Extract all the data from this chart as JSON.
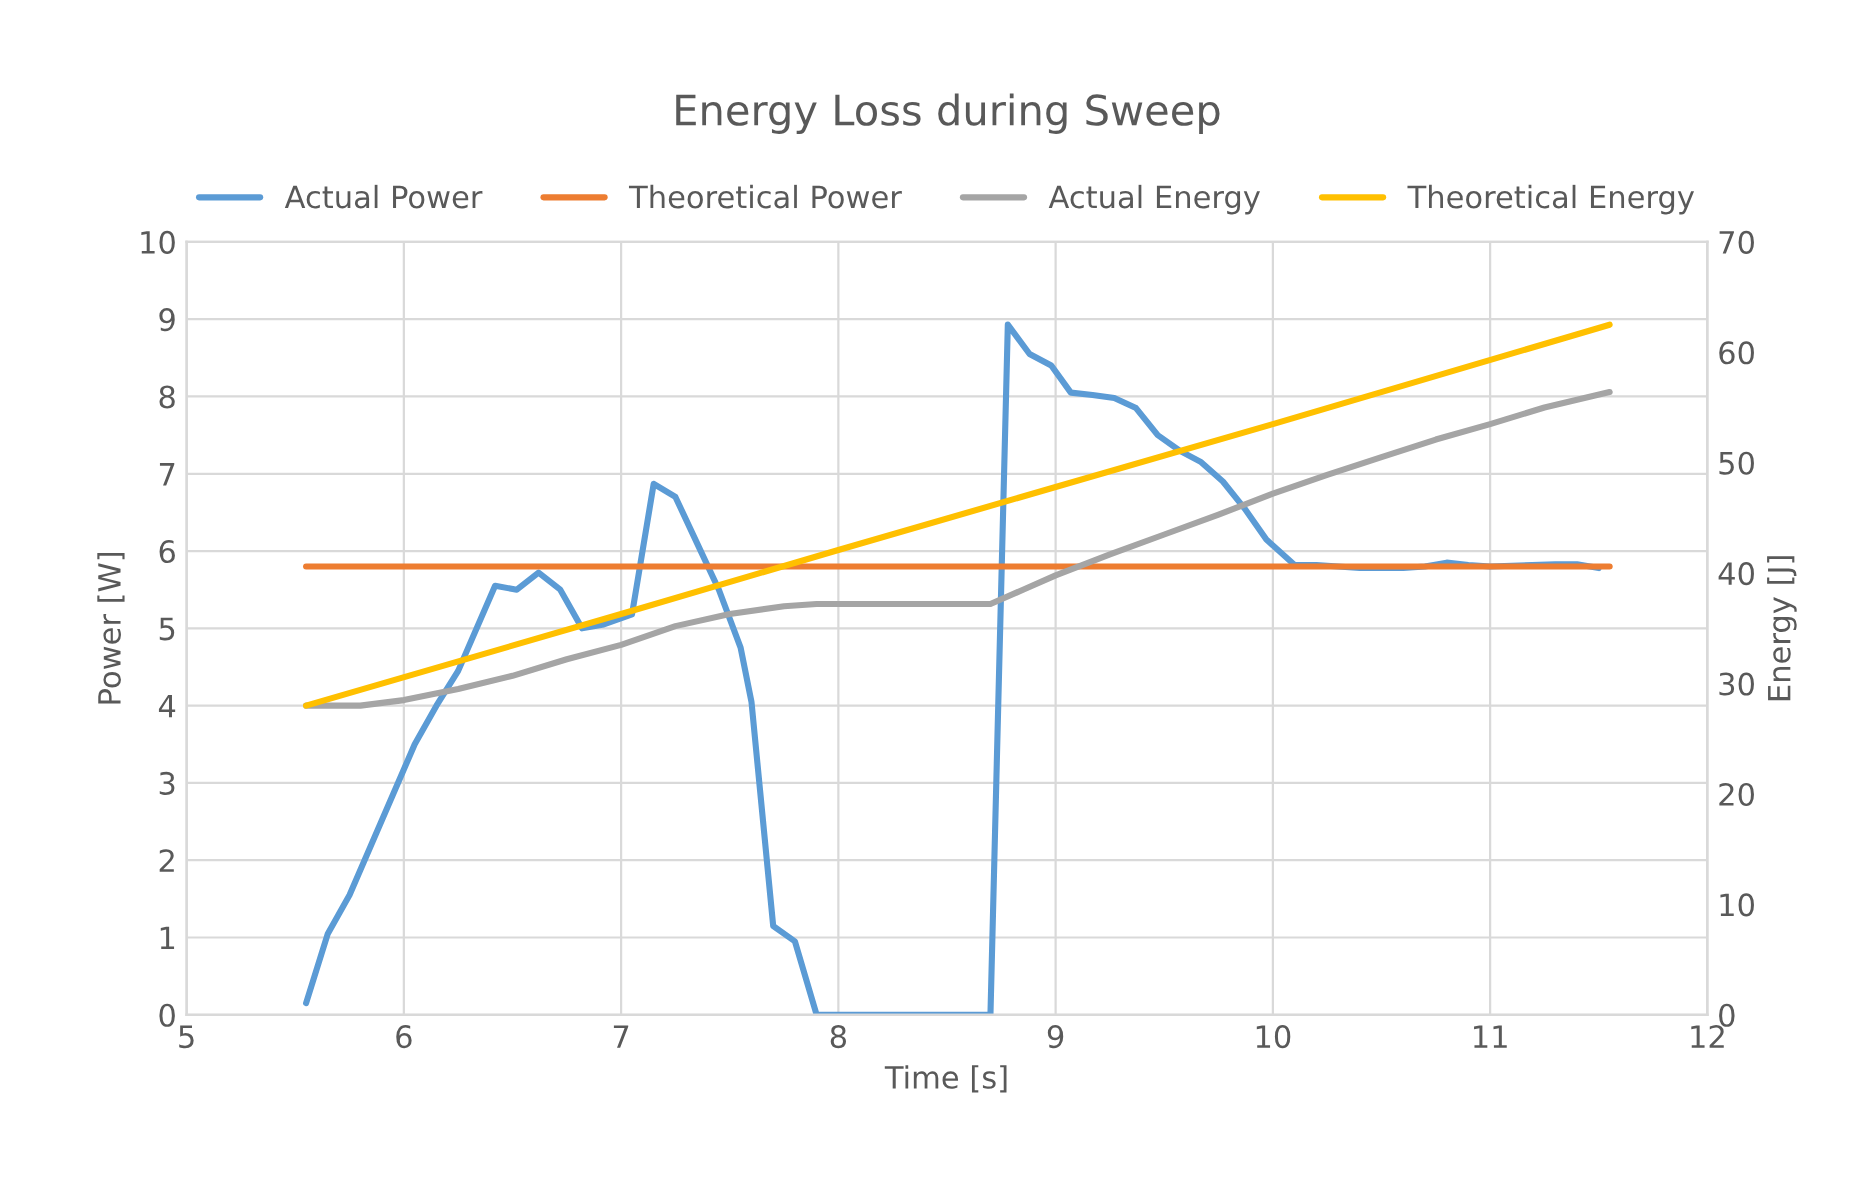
{
  "chart_data": {
    "type": "line",
    "title": "Energy Loss during Sweep",
    "xlabel": "Time [s]",
    "ylabel": "Power [W]",
    "y2label": "Energy [J]",
    "xlim": [
      5,
      12
    ],
    "xticks": [
      5,
      6,
      7,
      8,
      9,
      10,
      11,
      12
    ],
    "ylim": [
      0,
      10
    ],
    "yticks": [
      0,
      1,
      2,
      3,
      4,
      5,
      6,
      7,
      8,
      9,
      10
    ],
    "y2lim": [
      0,
      70
    ],
    "y2ticks": [
      0,
      10,
      20,
      30,
      40,
      50,
      60,
      70
    ],
    "grid": true,
    "legend": "top",
    "marker": "none",
    "line_style": "solid",
    "series": [
      {
        "name": "Actual Power",
        "color": "#5b9bd5",
        "x": [
          5.55,
          5.65,
          5.75,
          5.85,
          5.95,
          6.05,
          6.15,
          6.25,
          6.42,
          6.52,
          6.62,
          6.72,
          6.82,
          6.92,
          7.05,
          7.15,
          7.25,
          7.35,
          7.45,
          7.55,
          7.6,
          7.7,
          7.8,
          7.9,
          8.7,
          8.78,
          8.88,
          8.98,
          9.07,
          9.17,
          9.27,
          9.37,
          9.47,
          9.57,
          9.67,
          9.77,
          9.87,
          9.97,
          10.1,
          10.2,
          10.4,
          10.6,
          10.7,
          10.8,
          10.9,
          11.0,
          11.3,
          11.4,
          11.5
        ],
        "values": [
          0.15,
          1.05,
          1.55,
          2.2,
          2.85,
          3.5,
          4.0,
          4.45,
          5.55,
          5.5,
          5.72,
          5.5,
          5.0,
          5.05,
          5.18,
          6.87,
          6.7,
          6.1,
          5.5,
          4.75,
          4.05,
          1.15,
          0.95,
          0,
          0,
          8.93,
          8.55,
          8.4,
          8.05,
          8.02,
          7.98,
          7.85,
          7.5,
          7.3,
          7.15,
          6.9,
          6.55,
          6.15,
          5.82,
          5.82,
          5.78,
          5.78,
          5.8,
          5.85,
          5.82,
          5.8,
          5.83,
          5.83,
          5.78
        ]
      },
      {
        "name": "Theoretical Power",
        "color": "#ed7d31",
        "x": [
          5.55,
          11.55
        ],
        "values": [
          5.8,
          5.8
        ]
      },
      {
        "name": "Actual Energy",
        "color": "#a5a5a5",
        "axis": "y2",
        "x": [
          5.55,
          5.8,
          6.0,
          6.25,
          6.5,
          6.75,
          7.0,
          7.25,
          7.5,
          7.75,
          7.9,
          8.5,
          8.7,
          8.85,
          9.0,
          9.25,
          9.5,
          9.75,
          10.0,
          10.25,
          10.5,
          10.75,
          11.0,
          11.25,
          11.55
        ],
        "values": [
          28,
          28,
          28.5,
          29.5,
          30.7,
          32.2,
          33.5,
          35.2,
          36.3,
          37.0,
          37.2,
          37.2,
          37.2,
          38.5,
          39.8,
          41.7,
          43.5,
          45.3,
          47.2,
          48.9,
          50.5,
          52.1,
          53.5,
          55.0,
          56.4
        ]
      },
      {
        "name": "Theoretical Energy",
        "color": "#ffc000",
        "axis": "y2",
        "x": [
          5.55,
          7,
          8,
          9,
          10,
          11.55
        ],
        "values": [
          28,
          36.3,
          42.1,
          47.8,
          53.5,
          62.5
        ]
      }
    ]
  }
}
